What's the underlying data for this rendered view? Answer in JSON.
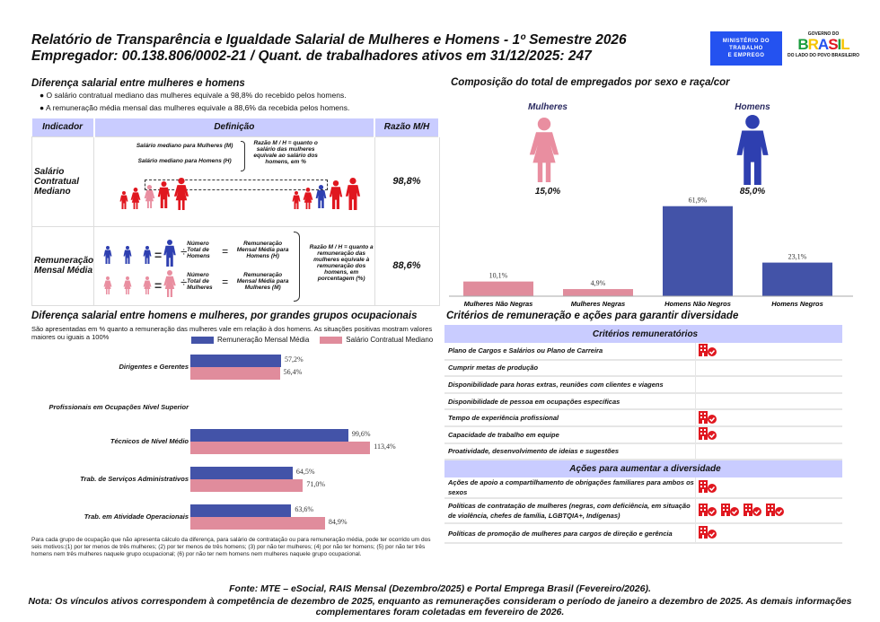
{
  "header": {
    "title": "Relatório de Transparência e Igualdade Salarial de Mulheres e Homens - 1º Semestre 2026",
    "subtitle": "Empregador: 00.138.806/0002-21 / Quant. de trabalhadores ativos em 31/12/2025: 247",
    "logo_ministerio": "MINISTÉRIO DO TRABALHO E EMPREGO",
    "logo_governo": "GOVERNO DO BRASIL DO LADO DO POVO BRASILEIRO"
  },
  "diferenca": {
    "title": "Diferença salarial entre mulheres e homens",
    "bullets": [
      "O salário contratual mediano das mulheres equivale a 98,8% do recebido pelos homens.",
      "A remuneração média mensal das mulheres equivale a 88,6% da recebida pelos homens."
    ],
    "table": {
      "headers": [
        "Indicador",
        "Definição",
        "Razão M/H"
      ],
      "row1": {
        "indicador": "Salário Contratual Mediano",
        "m_label": "Salário mediano para Mulheres (M)",
        "h_label": "Salário mediano para Homens (H)",
        "note": "Razão M / H = quanto o salário das mulheres equivale ao salário dos homens, em %",
        "razao": "98,8%"
      },
      "row2": {
        "indicador": "Remuneração Mensal Média",
        "num_h": "Número Total de Homens",
        "rem_h": "Remuneração Mensal Média para Homens (H)",
        "num_m": "Número Total de Mulheres",
        "rem_m": "Remuneração Mensal Média para Mulheres (M)",
        "note": "Razão M / H = quanto a remuneração das mulheres equivale à remuneração dos homens, em porcentagem (%)",
        "razao": "88,6%"
      }
    }
  },
  "colors": {
    "women": "#e98ea0",
    "men": "#2e3fb0",
    "red": "#e0171f",
    "bar_blue": "#4353a8",
    "bar_pink": "#e08c9c",
    "header_bg": "#c9ccff"
  },
  "composicao": {
    "title": "Composição do total de empregados por sexo e raça/cor",
    "mulheres_label": "Mulheres",
    "mulheres_pct": "15,0%",
    "homens_label": "Homens",
    "homens_pct": "85,0%"
  },
  "chart_data": [
    {
      "type": "bar",
      "categories": [
        "Mulheres Não Negras",
        "Mulheres Negras",
        "Homens Não Negros",
        "Homens Negros"
      ],
      "values": [
        10.1,
        4.9,
        61.9,
        23.1
      ],
      "labels": [
        "10,1%",
        "4,9%",
        "61,9%",
        "23,1%"
      ],
      "colors": [
        "#e08c9c",
        "#e08c9c",
        "#4353a8",
        "#4353a8"
      ]
    },
    {
      "type": "bar",
      "orientation": "horizontal",
      "title": "Diferença salarial entre homens e mulheres, por grandes grupos ocupacionais",
      "subtitle": "São apresentadas em % quanto a remuneração das mulheres vale em relação à dos homens. As situações positivas mostram valores maiores ou iguais a 100%",
      "categories": [
        "Dirigentes e Gerentes",
        "Profissionais em Ocupações Nível Superior",
        "Técnicos de Nível Médio",
        "Trab. de Serviços Administrativos",
        "Trab. em Atividade Operacionais"
      ],
      "legend": "top-right",
      "series": [
        {
          "name": "Remuneração Mensal Média",
          "values": [
            57.2,
            null,
            99.6,
            64.5,
            63.6
          ],
          "labels": [
            "57,2%",
            "",
            "99,6%",
            "64,5%",
            "63,6%"
          ]
        },
        {
          "name": "Salário Contratual Mediano",
          "values": [
            56.4,
            null,
            113.4,
            71.0,
            84.9
          ],
          "labels": [
            "56,4%",
            "",
            "113,4%",
            "71,0%",
            "84,9%"
          ]
        }
      ],
      "note": "Para cada grupo de ocupação que não apresenta cálculo da diferença, para salário de contratação ou para remuneração média, pode ter ocorrido um dos seis motivos:(1) por ter menos de três mulheres; (2) por ter menos de três homens; (3) por não ter mulheres; (4) por não ter homens; (5) por não ter três homens nem três mulheres naquele grupo ocupacional; (6) por não ter nem homens nem mulheres naquele grupo ocupacional."
    }
  ],
  "criterios": {
    "title": "Critérios de remuneração e ações para garantir diversidade",
    "h1": "Critérios remuneratórios",
    "rows1": [
      {
        "label": "Plano de Cargos e Salários ou Plano de Carreira",
        "icons": 1
      },
      {
        "label": "Cumprir metas de produção",
        "icons": 0
      },
      {
        "label": "Disponibilidade para horas extras, reuniões com clientes e viagens",
        "icons": 0
      },
      {
        "label": "Disponibilidade de pessoa em ocupações específicas",
        "icons": 0
      },
      {
        "label": "Tempo de experiência profissional",
        "icons": 1
      },
      {
        "label": "Capacidade de trabalho em equipe",
        "icons": 1
      },
      {
        "label": "Proatividade, desenvolvimento de ideias e sugestões",
        "icons": 0
      }
    ],
    "h2": "Ações para aumentar a diversidade",
    "rows2": [
      {
        "label": "Ações de apoio a compartilhamento de obrigações familiares para ambos os sexos",
        "icons": 1
      },
      {
        "label": "Políticas de contratação de mulheres (negras, com deficiência, em situação de violência, chefes de família, LGBTQIA+, Indígenas)",
        "icons": 4
      },
      {
        "label": "Políticas de promoção de mulheres para cargos de direção e gerência",
        "icons": 1
      }
    ]
  },
  "footer": {
    "fonte": "Fonte: MTE – eSocial, RAIS Mensal (Dezembro/2025) e Portal Emprega Brasil (Fevereiro/2026).",
    "nota": "Nota: Os vínculos ativos correspondem à competência de dezembro de 2025, enquanto as remunerações consideram o período de janeiro a dezembro de 2025. As demais informações complementares foram coletadas em fevereiro de 2026."
  }
}
